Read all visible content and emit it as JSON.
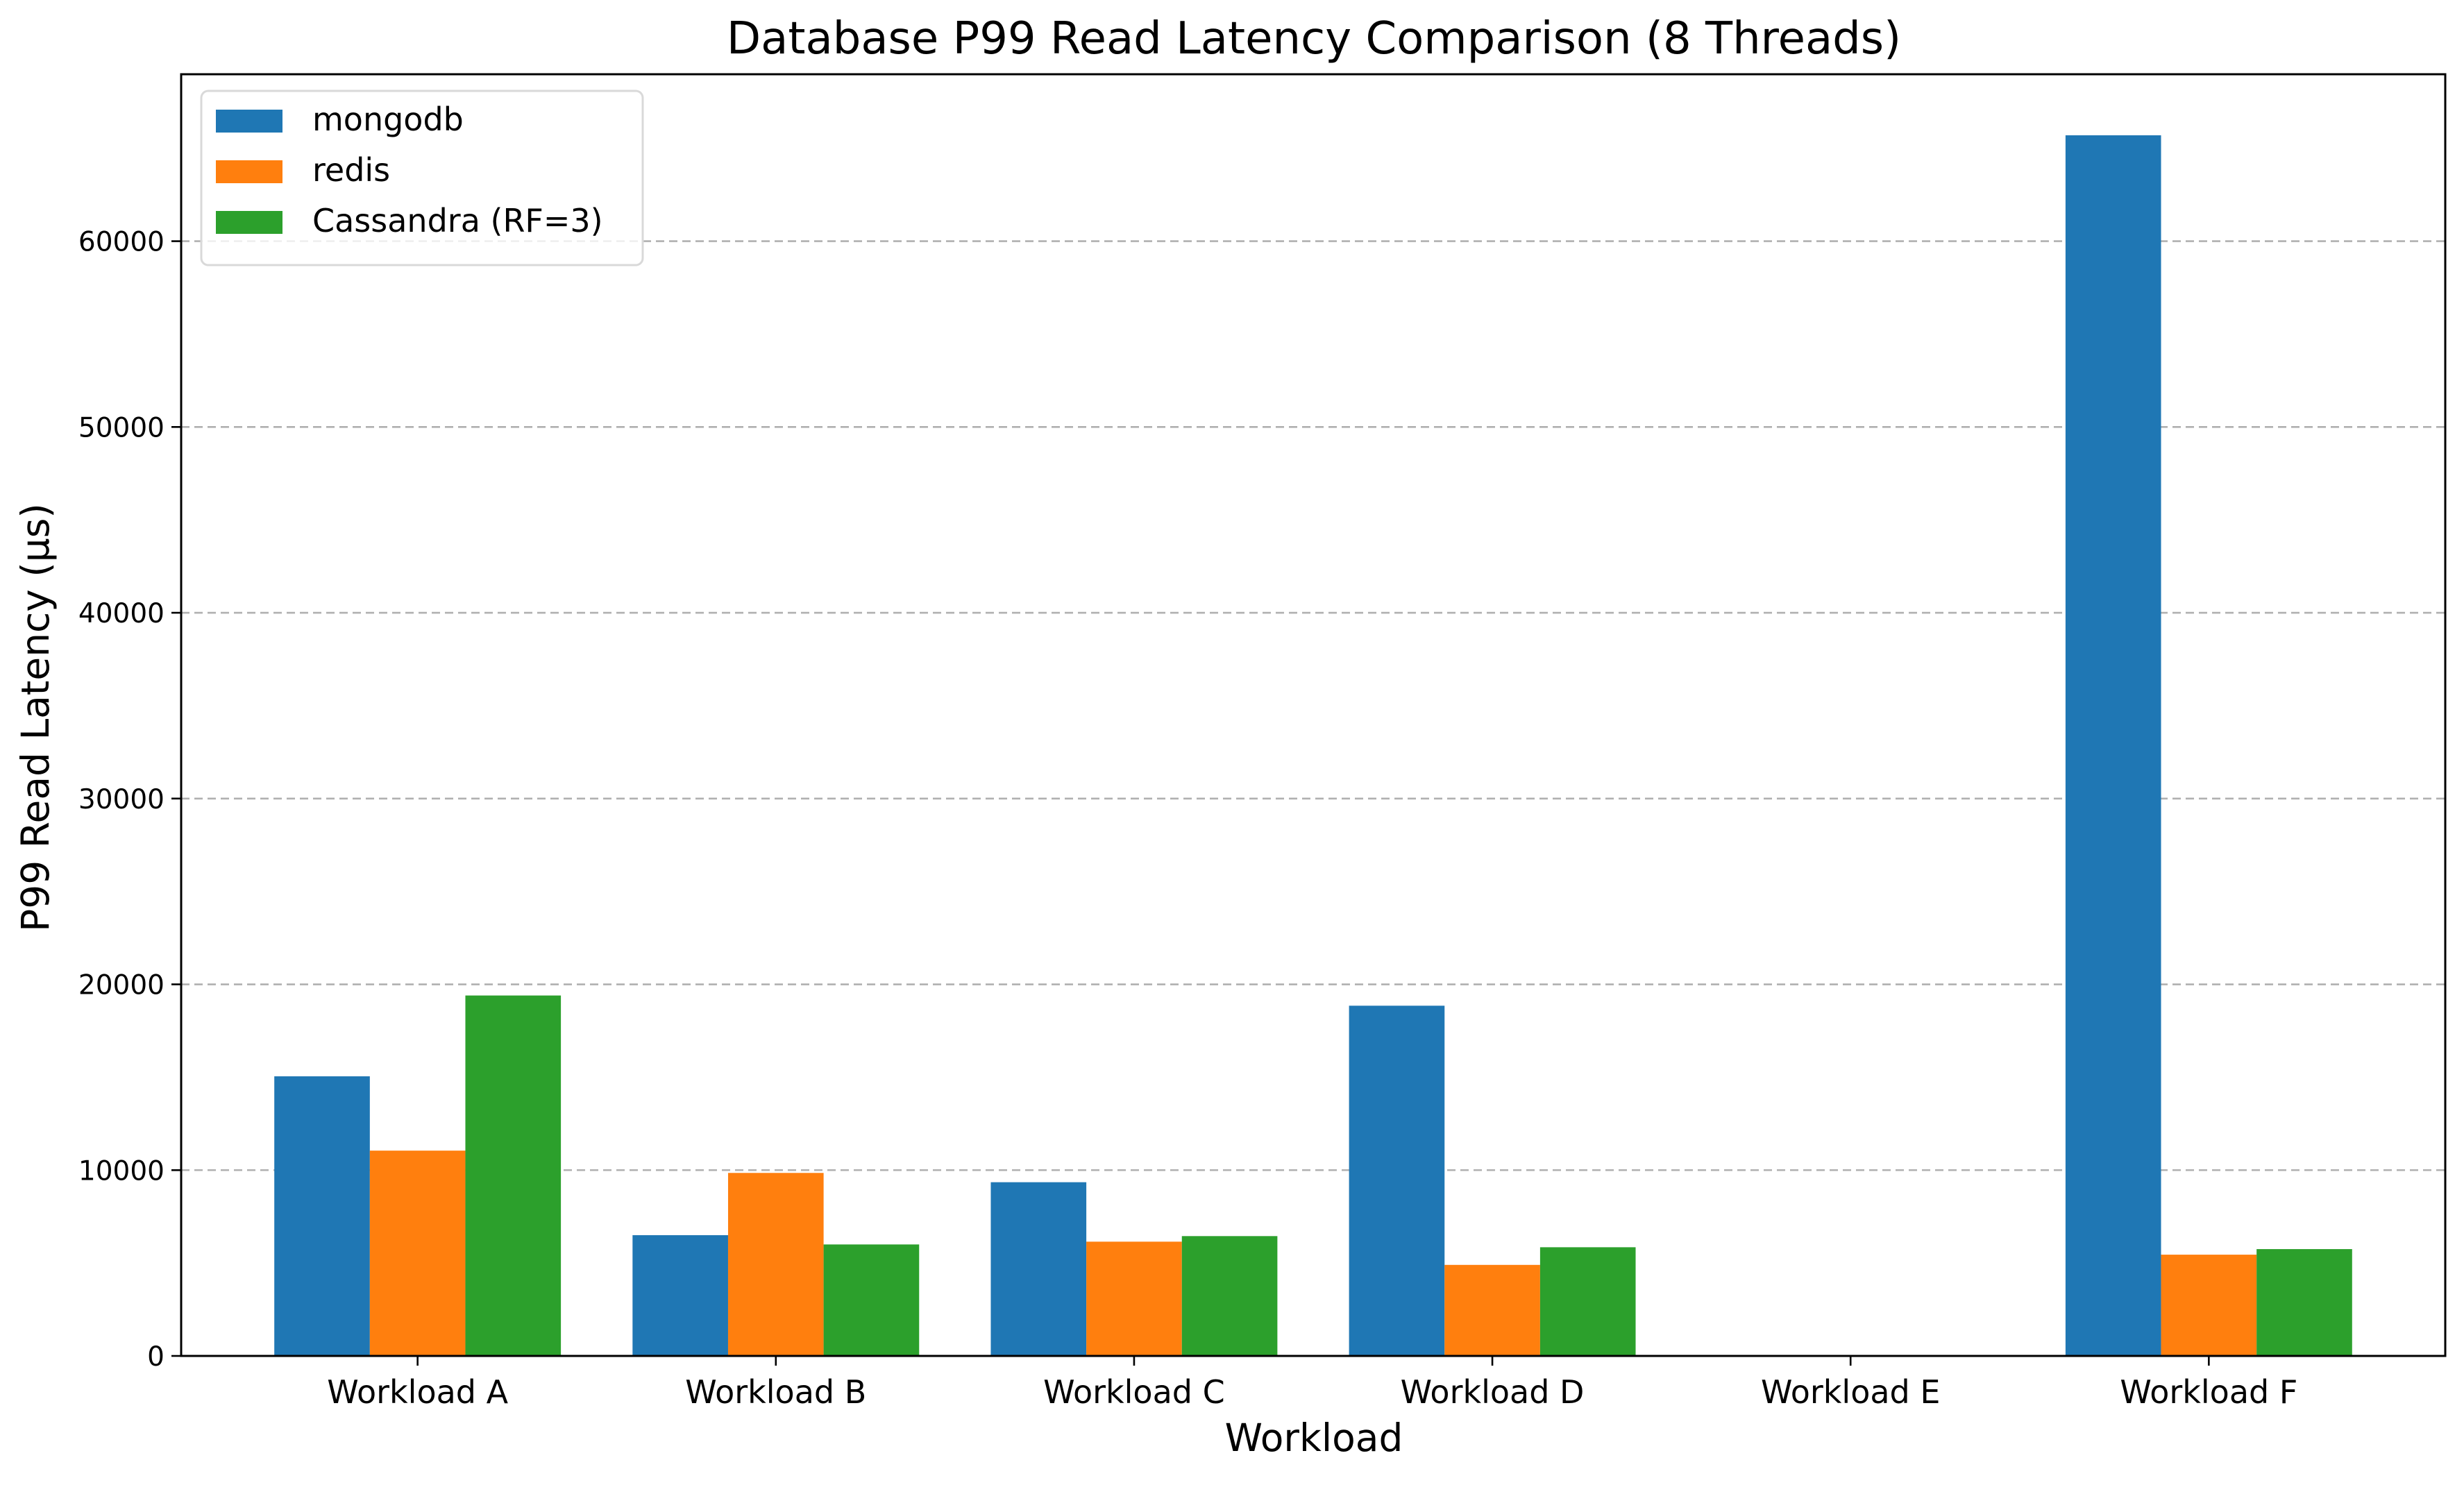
{
  "chart_data": {
    "type": "bar",
    "title": "Database P99 Read Latency Comparison (8 Threads)",
    "xlabel": "Workload",
    "ylabel": "P99 Read Latency (µs)",
    "categories": [
      "Workload A",
      "Workload B",
      "Workload C",
      "Workload D",
      "Workload E",
      "Workload F"
    ],
    "series": [
      {
        "name": "mongodb",
        "color": "#1f77b4",
        "values": [
          15050,
          6500,
          9350,
          18850,
          0,
          65700
        ]
      },
      {
        "name": "redis",
        "color": "#ff7f0e",
        "values": [
          11050,
          9850,
          6150,
          4900,
          0,
          5450
        ]
      },
      {
        "name": "Cassandra (RF=3)",
        "color": "#2ca02c",
        "values": [
          19400,
          6000,
          6450,
          5850,
          0,
          5750
        ]
      }
    ],
    "ylim": [
      0,
      68985
    ],
    "yticks": [
      0,
      10000,
      20000,
      30000,
      40000,
      50000,
      60000
    ],
    "grid": "y-dashed",
    "legend_position": "top-left"
  }
}
